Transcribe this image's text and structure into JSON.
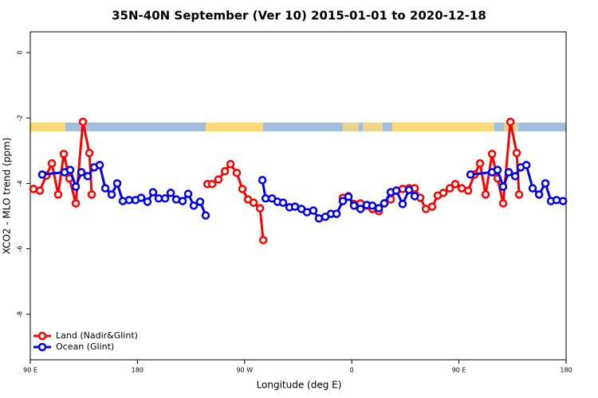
{
  "chart_data": {
    "type": "line",
    "title": "35N-40N September (Ver 10)   2015-01-01 to 2020-12-18",
    "x_label": "Longitude (deg E)",
    "y_label": "XCO2 - MLO trend (ppm)",
    "xlim": [
      90,
      540
    ],
    "xticks": [
      {
        "value": 90,
        "label": "90 E"
      },
      {
        "value": 180,
        "label": "180"
      },
      {
        "value": 270,
        "label": "90 W"
      },
      {
        "value": 360,
        "label": "0"
      },
      {
        "value": 450,
        "label": "90 E"
      },
      {
        "value": 540,
        "label": "180"
      }
    ],
    "ylim": [
      -9.39,
      0.63
    ],
    "yticks": [
      0,
      -2,
      -4,
      -6,
      -8
    ],
    "legend": "bottom-left",
    "series": [
      {
        "name": "Land (Nadir&Glint)",
        "color": "#ff0000",
        "x": [
          92.7,
          98.0,
          103.4,
          108.1,
          113.4,
          118.1,
          122.8,
          128.2,
          134.2,
          139.6,
          141.6,
          null,
          238.7,
          242.7,
          248.0,
          253.4,
          258.1,
          263.4,
          268.1,
          272.8,
          277.5,
          282.9,
          285.6,
          null,
          352.5,
          357.2,
          361.9,
          367.3,
          372.6,
          377.3,
          382.7,
          387.3,
          392.7,
          397.4,
          402.7,
          408.1,
          412.8,
          417.5,
          422.2,
          427.5,
          432.2,
          436.9,
          442.3,
          446.9,
          452.3,
          457.7,
          463.0,
          467.7,
          472.4,
          477.8,
          482.4,
          487.1,
          493.2,
          498.5,
          500.5
        ],
        "values": [
          -4.17,
          -4.22,
          -3.76,
          -3.39,
          -4.34,
          -3.1,
          -3.85,
          -4.61,
          -2.12,
          -3.07,
          -4.34,
          null,
          -4.02,
          -4.02,
          -3.88,
          -3.63,
          -3.41,
          -3.68,
          -4.17,
          -4.49,
          -4.59,
          -4.76,
          -5.73,
          null,
          -4.44,
          -4.39,
          -4.63,
          -4.61,
          -4.68,
          -4.78,
          -4.85,
          -4.61,
          -4.49,
          -4.22,
          -4.17,
          -4.15,
          -4.15,
          -4.44,
          -4.78,
          -4.71,
          -4.37,
          -4.29,
          -4.15,
          -4.02,
          -4.15,
          -4.22,
          -3.73,
          -3.39,
          -4.34,
          -3.1,
          -3.85,
          -4.61,
          -2.12,
          -3.07,
          -4.34
        ]
      },
      {
        "name": "Ocean (Glint)",
        "color": "#0000ee",
        "x": [
          100.0,
          118.8,
          123.5,
          128.2,
          132.9,
          138.2,
          143.6,
          148.3,
          153.0,
          158.3,
          163.0,
          167.7,
          173.0,
          178.4,
          183.1,
          188.4,
          193.1,
          197.8,
          203.2,
          207.9,
          212.6,
          217.9,
          222.6,
          227.3,
          232.6,
          237.3,
          null,
          284.9,
          287.6,
          293.0,
          297.6,
          302.3,
          307.7,
          312.3,
          317.7,
          322.4,
          327.7,
          332.4,
          337.8,
          342.5,
          347.2,
          352.5,
          357.2,
          361.9,
          367.3,
          372.6,
          377.3,
          382.7,
          387.3,
          392.7,
          397.4,
          402.7,
          408.1,
          412.8,
          null,
          459.7,
          477.8,
          482.4,
          487.1,
          491.8,
          497.2,
          501.9,
          506.6,
          511.9,
          517.3,
          522.6,
          527.3,
          532.0,
          537.4
        ],
        "values": [
          -3.73,
          -3.66,
          -3.59,
          -4.1,
          -3.66,
          -3.78,
          -3.51,
          -3.44,
          -4.15,
          -4.34,
          -4.0,
          -4.54,
          -4.51,
          -4.51,
          -4.44,
          -4.56,
          -4.27,
          -4.46,
          -4.46,
          -4.29,
          -4.49,
          -4.54,
          -4.32,
          -4.68,
          -4.56,
          -4.98,
          null,
          -3.9,
          -4.46,
          -4.46,
          -4.56,
          -4.59,
          -4.73,
          -4.71,
          -4.78,
          -4.88,
          -4.83,
          -5.07,
          -5.02,
          -4.93,
          -4.93,
          -4.54,
          -4.41,
          -4.68,
          -4.78,
          -4.66,
          -4.68,
          -4.76,
          -4.61,
          -4.27,
          -4.22,
          -4.63,
          -4.2,
          -4.39,
          null,
          -3.73,
          -3.66,
          -3.59,
          -4.1,
          -3.66,
          -3.78,
          -3.51,
          -3.44,
          -4.15,
          -4.34,
          -4.0,
          -4.54,
          -4.51,
          -4.54
        ]
      }
    ]
  }
}
